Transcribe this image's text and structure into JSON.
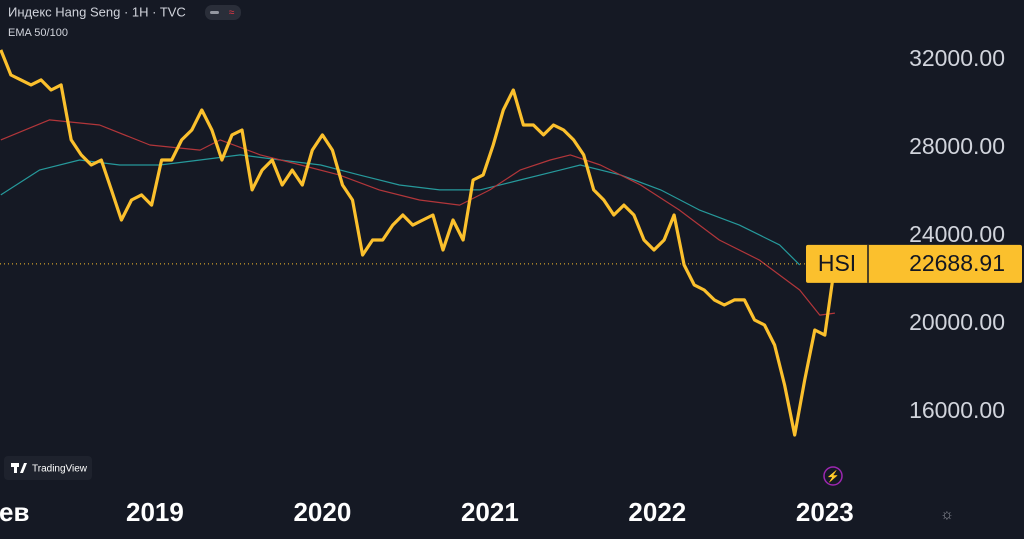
{
  "title": "Индекс Hang Seng · 1H · TVC",
  "indicator_label": "EMA 50/100",
  "brand": "TradingView",
  "chart_data": {
    "type": "line",
    "xlim": [
      2018.075,
      2023.21
    ],
    "ylim": [
      12410,
      34680
    ],
    "xticks": [
      {
        "value": 2018.16,
        "label": "ев"
      },
      2019,
      2020,
      2021,
      2022,
      2023
    ],
    "yticks": [
      {
        "value": 16000,
        "label": "16000.00"
      },
      {
        "value": 20000,
        "label": "20000.00"
      },
      {
        "value": 24000,
        "label": "24000.00"
      },
      {
        "value": 28000,
        "label": "28000.00"
      },
      {
        "value": 32000,
        "label": "32000.00"
      }
    ],
    "grid": false,
    "series": [
      {
        "name": "HSI",
        "color": "#fbc02d",
        "x": [
          2018.08,
          2018.14,
          2018.2,
          2018.26,
          2018.32,
          2018.38,
          2018.44,
          2018.5,
          2018.56,
          2018.62,
          2018.68,
          2018.74,
          2018.8,
          2018.86,
          2018.92,
          2018.98,
          2019.04,
          2019.1,
          2019.16,
          2019.22,
          2019.28,
          2019.34,
          2019.4,
          2019.46,
          2019.52,
          2019.58,
          2019.64,
          2019.7,
          2019.76,
          2019.82,
          2019.88,
          2019.94,
          2020.0,
          2020.06,
          2020.12,
          2020.18,
          2020.24,
          2020.3,
          2020.36,
          2020.42,
          2020.48,
          2020.54,
          2020.6,
          2020.66,
          2020.72,
          2020.78,
          2020.84,
          2020.9,
          2020.96,
          2021.02,
          2021.08,
          2021.14,
          2021.2,
          2021.26,
          2021.32,
          2021.38,
          2021.44,
          2021.5,
          2021.56,
          2021.62,
          2021.68,
          2021.74,
          2021.8,
          2021.86,
          2021.92,
          2021.98,
          2022.04,
          2022.1,
          2022.16,
          2022.22,
          2022.28,
          2022.34,
          2022.4,
          2022.46,
          2022.52,
          2022.58,
          2022.64,
          2022.7,
          2022.76,
          2022.82,
          2022.88,
          2022.94,
          2023.0,
          2023.06
        ],
        "values": [
          32410,
          31270,
          31050,
          30820,
          31050,
          30590,
          30820,
          28320,
          27640,
          27180,
          27410,
          26050,
          24680,
          25590,
          25820,
          25360,
          27410,
          27410,
          28320,
          28770,
          29680,
          28770,
          27410,
          28550,
          28770,
          26050,
          26950,
          27410,
          26270,
          26950,
          26270,
          27860,
          28550,
          27860,
          26270,
          25590,
          23090,
          23770,
          23770,
          24450,
          24910,
          24450,
          24680,
          24910,
          23320,
          24680,
          23770,
          26500,
          26730,
          28090,
          29680,
          30590,
          29000,
          29000,
          28550,
          29000,
          28770,
          28320,
          27640,
          26050,
          25590,
          24910,
          25360,
          24910,
          23770,
          23320,
          23770,
          24910,
          22640,
          21730,
          21500,
          21050,
          20820,
          21050,
          21050,
          20140,
          19910,
          19000,
          17180,
          14910,
          17410,
          19680,
          19450,
          22688.91
        ]
      },
      {
        "color": "#b2363a",
        "x": [
          2018.08,
          2018.37,
          2018.67,
          2018.97,
          2019.27,
          2019.39,
          2019.63,
          2019.87,
          2020.1,
          2020.34,
          2020.58,
          2020.82,
          2021.0,
          2021.18,
          2021.36,
          2021.48,
          2021.66,
          2021.9,
          2022.13,
          2022.37,
          2022.61,
          2022.85,
          2022.97,
          2023.06
        ],
        "values": [
          28320,
          29230,
          29000,
          28090,
          27860,
          28320,
          27640,
          27180,
          26730,
          26050,
          25590,
          25360,
          26050,
          26950,
          27410,
          27640,
          27180,
          26270,
          25140,
          23770,
          22860,
          21500,
          20360,
          20450
        ]
      },
      {
        "color": "#26999b",
        "x": [
          2018.08,
          2018.31,
          2018.55,
          2018.79,
          2019.03,
          2019.27,
          2019.51,
          2019.75,
          2019.99,
          2020.22,
          2020.46,
          2020.7,
          2020.94,
          2021.18,
          2021.42,
          2021.54,
          2021.78,
          2022.02,
          2022.25,
          2022.49,
          2022.73,
          2022.85
        ],
        "values": [
          25820,
          26950,
          27410,
          27180,
          27180,
          27410,
          27640,
          27410,
          27180,
          26730,
          26270,
          26050,
          26050,
          26500,
          26950,
          27180,
          26730,
          26050,
          25140,
          24450,
          23550,
          22640
        ]
      }
    ]
  }
}
